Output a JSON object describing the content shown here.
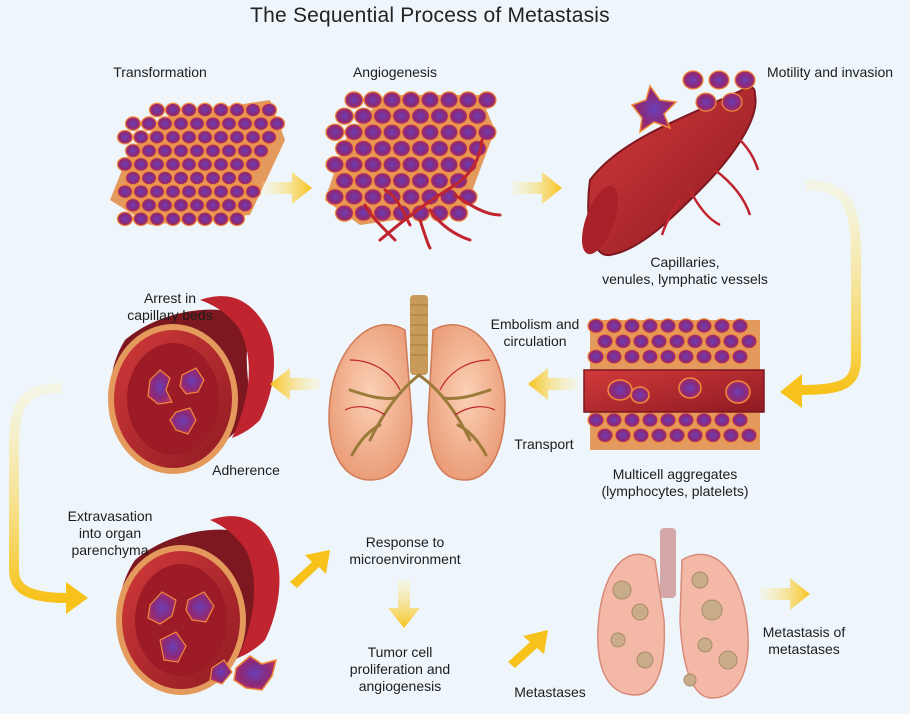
{
  "title": "The Sequential Process of Metastasis",
  "colors": {
    "cell_fill": "#8a2a6e",
    "cell_stroke": "#f08a3a",
    "cell_nucleus": "#5b3fa8",
    "vessel": "#c0242e",
    "vessel_dark": "#8e1a22",
    "arrow": "#f7c21a",
    "lung": "#f3b08e",
    "airway": "#c89a58",
    "background": "#eef5fb"
  },
  "stages": {
    "transformation": "Transformation",
    "angiogenesis": "Angiogenesis",
    "motility": "Motility and invasion",
    "capillaries": "Capillaries,\nvenules, lymphatic vessels",
    "embolism": "Embolism and\ncirculation",
    "transport": "Transport",
    "aggregates": "Multicell aggregates\n(lymphocytes, platelets)",
    "arrest": "Arrest in\ncapillary beds",
    "adherence": "Adherence",
    "extravasation": "Extravasation\ninto organ\nparenchyma",
    "response": "Response to\nmicroenvironment",
    "proliferation": "Tumor cell\nproliferation and\nangiogenesis",
    "metastases": "Metastases",
    "metastasis_of_metastases": "Metastasis of\nmetastases"
  }
}
